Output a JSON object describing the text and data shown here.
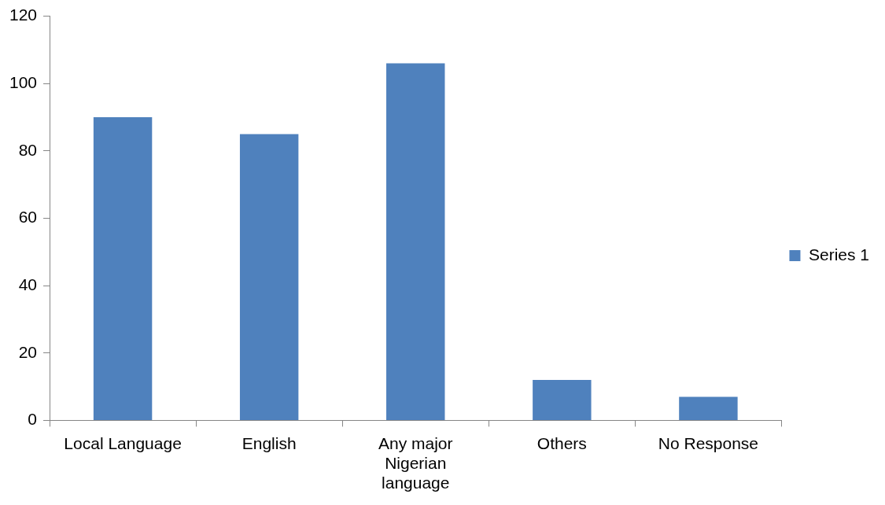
{
  "chart_data": {
    "type": "bar",
    "categories": [
      "Local Language",
      "English",
      "Any major Nigerian language",
      "Others",
      "No Response"
    ],
    "series": [
      {
        "name": "Series 1",
        "color": "#4f81bd",
        "values": [
          90,
          85,
          106,
          12,
          7
        ]
      }
    ],
    "ylim": [
      0,
      120
    ],
    "yticks": [
      0,
      20,
      40,
      60,
      80,
      100,
      120
    ],
    "grid": false,
    "legend": "right"
  }
}
